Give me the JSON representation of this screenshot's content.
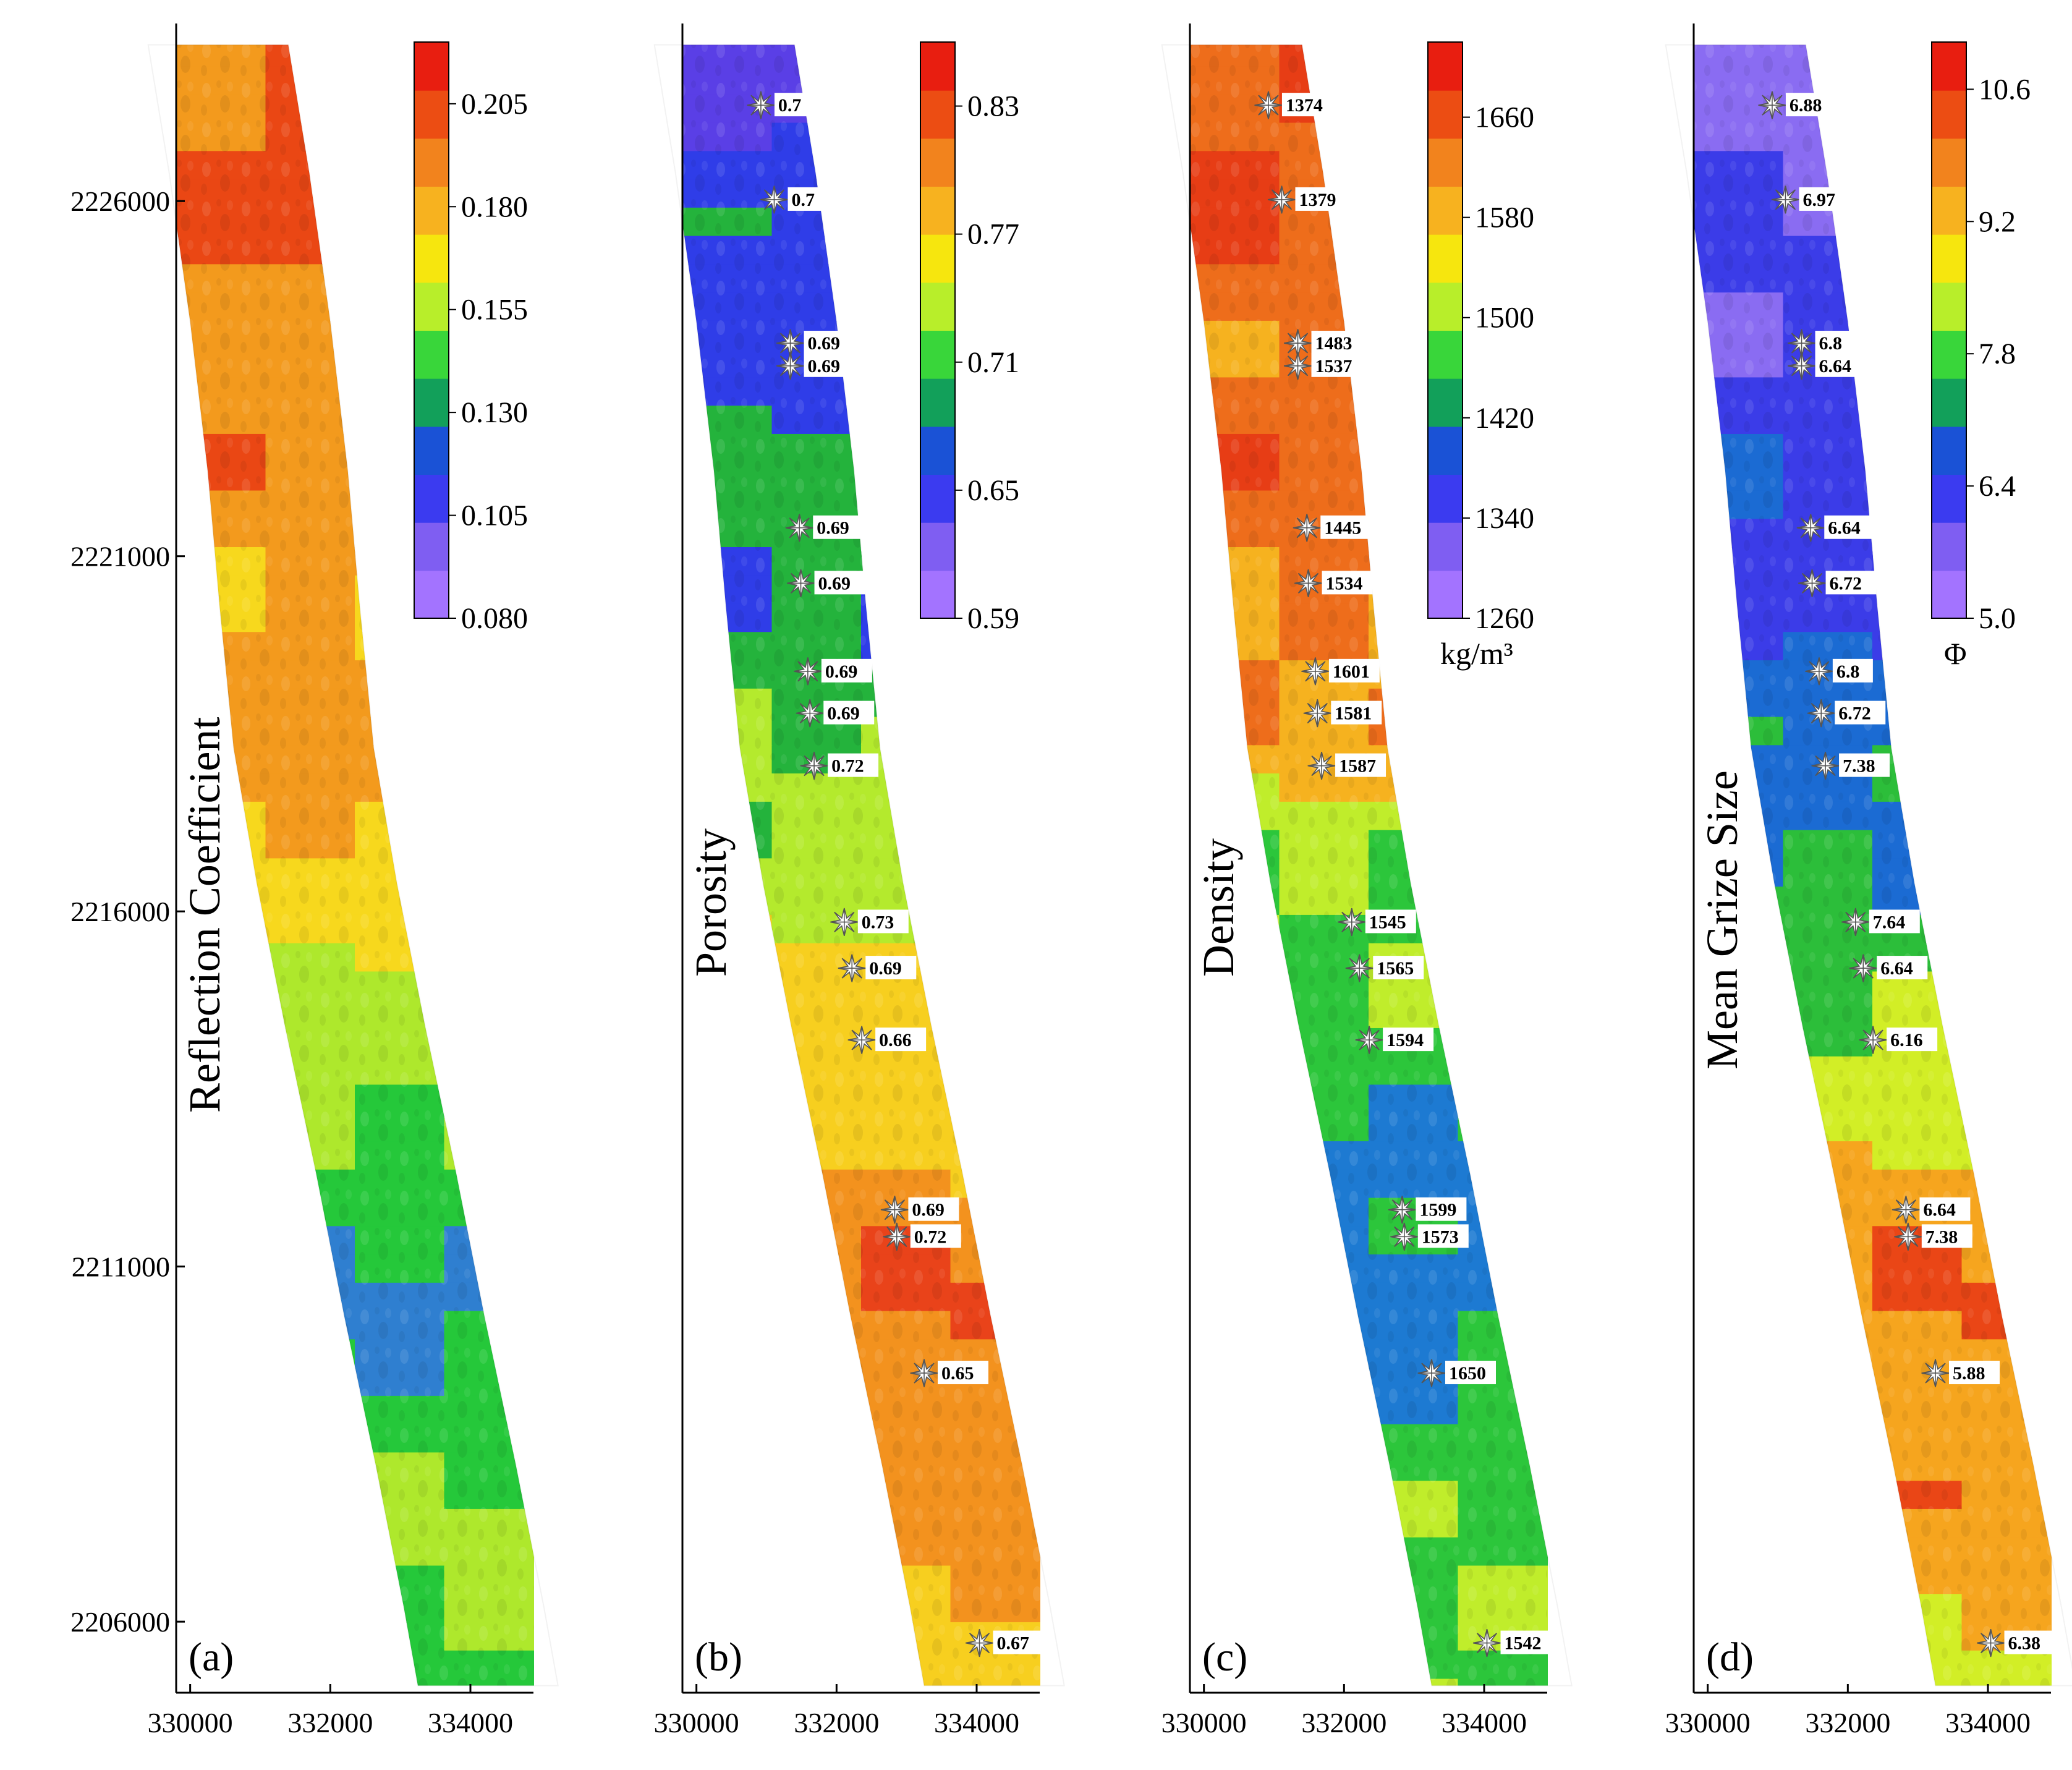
{
  "chart_data": [
    {
      "type": "heatmap",
      "panel_label": "(a)",
      "title": "Reflection Coefficient",
      "xlabel": "",
      "ylabel": "",
      "xlim": [
        329800,
        334900
      ],
      "ylim": [
        2205000,
        2228500
      ],
      "xticks": [
        "330000",
        "332000",
        "334000"
      ],
      "yticks": [
        "2226000",
        "2221000",
        "2216000",
        "2211000",
        "2206000"
      ],
      "colorbar": {
        "min": 0.08,
        "max": 0.22,
        "ticks": [
          "0.205",
          "0.180",
          "0.155",
          "0.130",
          "0.105",
          "0.080"
        ],
        "unit": ""
      },
      "track_trend": "high (red/orange) in north, green in south with blue low near 2210000",
      "samples": []
    },
    {
      "type": "heatmap",
      "panel_label": "(b)",
      "title": "Porosity",
      "xlabel": "",
      "ylabel": "",
      "xlim": [
        329800,
        334900
      ],
      "ylim": [
        2205000,
        2228500
      ],
      "xticks": [
        "330000",
        "332000",
        "334000"
      ],
      "yticks": [],
      "colorbar": {
        "min": 0.59,
        "max": 0.86,
        "ticks": [
          "0.83",
          "0.77",
          "0.71",
          "0.65",
          "0.59"
        ],
        "unit": ""
      },
      "track_trend": "low (blue) in north, orange/red in south",
      "samples": [
        {
          "x": 330920,
          "y": 2227350,
          "label": "0.7"
        },
        {
          "x": 331110,
          "y": 2226020,
          "label": "0.7"
        },
        {
          "x": 331340,
          "y": 2224000,
          "label": "0.69"
        },
        {
          "x": 331340,
          "y": 2223680,
          "label": "0.69"
        },
        {
          "x": 331470,
          "y": 2221400,
          "label": "0.69"
        },
        {
          "x": 331490,
          "y": 2220620,
          "label": "0.69"
        },
        {
          "x": 331590,
          "y": 2219380,
          "label": "0.69"
        },
        {
          "x": 331620,
          "y": 2218790,
          "label": "0.69"
        },
        {
          "x": 331680,
          "y": 2218050,
          "label": "0.72"
        },
        {
          "x": 332110,
          "y": 2215850,
          "label": "0.73"
        },
        {
          "x": 332220,
          "y": 2215200,
          "label": "0.69"
        },
        {
          "x": 332360,
          "y": 2214190,
          "label": "0.66"
        },
        {
          "x": 332830,
          "y": 2211800,
          "label": "0.69"
        },
        {
          "x": 332860,
          "y": 2211420,
          "label": "0.72"
        },
        {
          "x": 333250,
          "y": 2209500,
          "label": "0.65"
        },
        {
          "x": 334040,
          "y": 2205700,
          "label": "0.67"
        }
      ]
    },
    {
      "type": "heatmap",
      "panel_label": "(c)",
      "title": "Density",
      "xlabel": "",
      "ylabel": "",
      "xlim": [
        329800,
        334900
      ],
      "ylim": [
        2205000,
        2228500
      ],
      "xticks": [
        "330000",
        "332000",
        "334000"
      ],
      "yticks": [],
      "colorbar": {
        "min": 1260,
        "max": 1720,
        "ticks": [
          "1660",
          "1580",
          "1500",
          "1420",
          "1340",
          "1260"
        ],
        "unit": "kg/m³"
      },
      "track_trend": "high (red/orange) in north, green/blue in south",
      "samples": [
        {
          "x": 330920,
          "y": 2227350,
          "label": "1374"
        },
        {
          "x": 331110,
          "y": 2226020,
          "label": "1379"
        },
        {
          "x": 331340,
          "y": 2224000,
          "label": "1483"
        },
        {
          "x": 331340,
          "y": 2223680,
          "label": "1537"
        },
        {
          "x": 331470,
          "y": 2221400,
          "label": "1445"
        },
        {
          "x": 331490,
          "y": 2220620,
          "label": "1534"
        },
        {
          "x": 331590,
          "y": 2219380,
          "label": "1601"
        },
        {
          "x": 331620,
          "y": 2218790,
          "label": "1581"
        },
        {
          "x": 331680,
          "y": 2218050,
          "label": "1587"
        },
        {
          "x": 332110,
          "y": 2215850,
          "label": "1545"
        },
        {
          "x": 332220,
          "y": 2215200,
          "label": "1565"
        },
        {
          "x": 332360,
          "y": 2214190,
          "label": "1594"
        },
        {
          "x": 332830,
          "y": 2211800,
          "label": "1599"
        },
        {
          "x": 332860,
          "y": 2211420,
          "label": "1573"
        },
        {
          "x": 333250,
          "y": 2209500,
          "label": "1650"
        },
        {
          "x": 334040,
          "y": 2205700,
          "label": "1542"
        }
      ]
    },
    {
      "type": "heatmap",
      "panel_label": "(d)",
      "title": "Mean Grize Size",
      "xlabel": "",
      "ylabel": "",
      "xlim": [
        329800,
        334900
      ],
      "ylim": [
        2205000,
        2228500
      ],
      "xticks": [
        "330000",
        "332000",
        "334000"
      ],
      "yticks": [],
      "colorbar": {
        "min": 5.0,
        "max": 11.1,
        "ticks": [
          "10.6",
          "9.2",
          "7.8",
          "6.4",
          "5.0"
        ],
        "unit": "Φ"
      },
      "track_trend": "low (blue/purple) in north, orange/red in south",
      "samples": [
        {
          "x": 330920,
          "y": 2227350,
          "label": "6.88"
        },
        {
          "x": 331110,
          "y": 2226020,
          "label": "6.97"
        },
        {
          "x": 331340,
          "y": 2224000,
          "label": "6.8"
        },
        {
          "x": 331340,
          "y": 2223680,
          "label": "6.64"
        },
        {
          "x": 331470,
          "y": 2221400,
          "label": "6.64"
        },
        {
          "x": 331490,
          "y": 2220620,
          "label": "6.72"
        },
        {
          "x": 331590,
          "y": 2219380,
          "label": "6.8"
        },
        {
          "x": 331620,
          "y": 2218790,
          "label": "6.72"
        },
        {
          "x": 331680,
          "y": 2218050,
          "label": "7.38"
        },
        {
          "x": 332110,
          "y": 2215850,
          "label": "7.64"
        },
        {
          "x": 332220,
          "y": 2215200,
          "label": "6.64"
        },
        {
          "x": 332360,
          "y": 2214190,
          "label": "6.16"
        },
        {
          "x": 332830,
          "y": 2211800,
          "label": "6.64"
        },
        {
          "x": 332860,
          "y": 2211420,
          "label": "7.38"
        },
        {
          "x": 333250,
          "y": 2209500,
          "label": "5.88"
        },
        {
          "x": 334040,
          "y": 2205700,
          "label": "6.38"
        }
      ]
    }
  ],
  "colors": {
    "ramp": [
      "#a373ff",
      "#7f5ef2",
      "#3b3bf0",
      "#1a52d6",
      "#12a05a",
      "#39d63a",
      "#b8ee2a",
      "#f6e60e",
      "#f7b21f",
      "#f2831d",
      "#ec4d13",
      "#e81e10"
    ],
    "reflection_ramp": [
      "#2e33d0",
      "#2f7fd0",
      "#25c83a",
      "#aee82c",
      "#f7d81d",
      "#f39a1d",
      "#ea4714"
    ],
    "porosity_ramp": [
      "#5a3fe6",
      "#2f3de8",
      "#24b33c",
      "#b4ea2d",
      "#f7cf1f",
      "#f3921e",
      "#e9431a"
    ],
    "density_ramp": [
      "#1f3fdc",
      "#1d7ad2",
      "#2cc63b",
      "#c0ed2b",
      "#f6b21f",
      "#ee6d1b",
      "#e73d15"
    ],
    "grain_ramp": [
      "#8a6cf2",
      "#3b3ce8",
      "#1b6bd3",
      "#2cbe3a",
      "#d2ee26",
      "#f6a51e",
      "#ea4616"
    ]
  }
}
